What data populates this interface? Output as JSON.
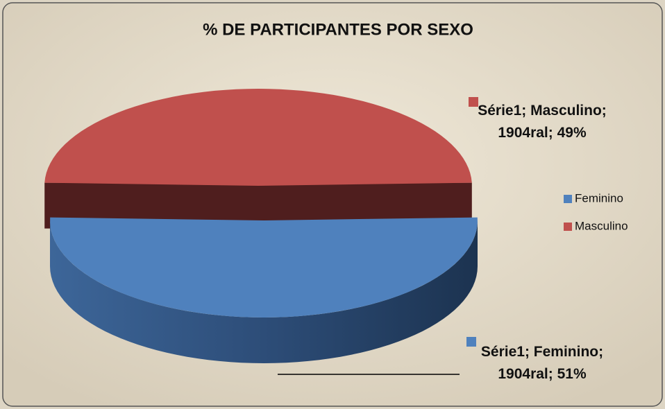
{
  "chart_data": {
    "type": "pie",
    "title": "% DE PARTICIPANTES POR SEXO",
    "categories": [
      "Feminino",
      "Masculino"
    ],
    "values": [
      51,
      49
    ],
    "value_labels": [
      "Série1; Feminino; 1904ral; 51%",
      "Série1; Masculino; 1904ral; 49%"
    ],
    "colors": [
      "#4f81bd",
      "#c0504d"
    ],
    "legend": "right"
  }
}
